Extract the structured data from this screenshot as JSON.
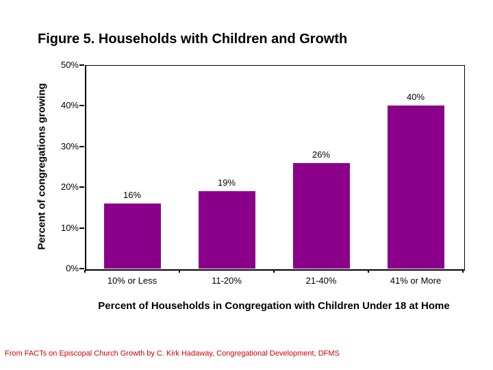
{
  "slide": {
    "title": "Figure 5. Households with Children and Growth",
    "footer": "From FACTs on Episcopal Church Growth by C. Kirk Hadaway, Congregational Development, DFMS"
  },
  "chart_data": {
    "type": "bar",
    "title": "Figure 5. Households with Children and Growth",
    "categories": [
      "10% or Less",
      "11-20%",
      "21-40%",
      "41% or More"
    ],
    "values": [
      16,
      19,
      26,
      40
    ],
    "data_labels": [
      "16%",
      "19%",
      "26%",
      "40%"
    ],
    "xlabel": "Percent of Households in Congregation with Children Under 18 at Home",
    "ylabel": "Percent of congregations growing",
    "ylim": [
      0,
      50
    ],
    "ytick_step": 10,
    "ytick_labels": [
      "0%",
      "10%",
      "20%",
      "30%",
      "40%",
      "50%"
    ],
    "grid": false,
    "legend": "none",
    "bar_color": "#8B008B",
    "axis_color": "#000000",
    "label_color": "#000000",
    "footer_color": "#CC0000"
  }
}
